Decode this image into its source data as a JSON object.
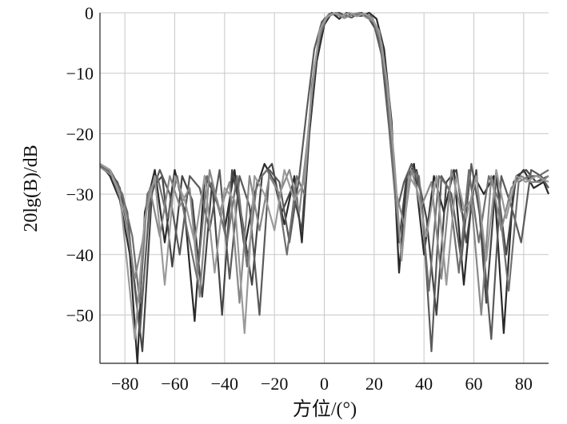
{
  "chart_data": {
    "type": "line",
    "title": "",
    "xlabel": "方位/(°)",
    "ylabel": "20lg(B)/dB",
    "xlim": [
      -90,
      90
    ],
    "ylim": [
      -58,
      0
    ],
    "xticks": [
      -80,
      -60,
      -40,
      -20,
      0,
      20,
      40,
      60,
      80
    ],
    "yticks": [
      0,
      -10,
      -20,
      -30,
      -40,
      -50
    ],
    "xtick_labels": [
      "−80",
      "−60",
      "−40",
      "−20",
      "0",
      "20",
      "40",
      "60",
      "80"
    ],
    "ytick_labels": [
      "0",
      "−10",
      "−20",
      "−30",
      "−40",
      "−50"
    ],
    "grid": true,
    "legend": "none",
    "colors": [
      "#2a2a2a",
      "#444444",
      "#5a5a5a",
      "#707070",
      "#888888",
      "#9a9a9a",
      "#3a3a3a",
      "#666666",
      "#7e7e7e",
      "#505050"
    ],
    "main_lobe": {
      "peak_db": 0,
      "left_3db_deg": -2,
      "right_3db_deg": 24,
      "null_left_deg": -8,
      "null_right_deg": 30
    },
    "sidelobe_level_db": -25,
    "series": [
      {
        "x": [
          -90,
          -86,
          -82,
          -78,
          -75,
          -72,
          -68,
          -64,
          -60,
          -56,
          -52,
          -48,
          -44,
          -40,
          -36,
          -32,
          -28,
          -24,
          -20,
          -16,
          -12,
          -9,
          -6,
          -3,
          0,
          3,
          6,
          9,
          12,
          15,
          18,
          21,
          24,
          27,
          30,
          33,
          36,
          40,
          44,
          48,
          52,
          56,
          60,
          64,
          68,
          72,
          76,
          80,
          84,
          88,
          90
        ],
        "y": [
          -25,
          -27,
          -31,
          -40,
          -58,
          -33,
          -26,
          -38,
          -26,
          -33,
          -51,
          -27,
          -30,
          -36,
          -26,
          -39,
          -30,
          -25,
          -28,
          -35,
          -27,
          -38,
          -20,
          -8,
          -2,
          0,
          -1,
          0,
          -0.5,
          -0.5,
          0,
          -1,
          -6,
          -18,
          -43,
          -28,
          -25,
          -40,
          -27,
          -33,
          -26,
          -45,
          -27,
          -30,
          -27,
          -53,
          -28,
          -26,
          -29,
          -28,
          -30
        ]
      },
      {
        "x": [
          -90,
          -86,
          -82,
          -78,
          -76,
          -73,
          -69,
          -65,
          -61,
          -57,
          -53,
          -49,
          -45,
          -41,
          -37,
          -33,
          -29,
          -25,
          -21,
          -17,
          -13,
          -9,
          -6,
          -3,
          0,
          3,
          6,
          9,
          12,
          15,
          18,
          21,
          24,
          27,
          30,
          33,
          37,
          41,
          45,
          49,
          53,
          57,
          61,
          65,
          69,
          73,
          77,
          81,
          85,
          90
        ],
        "y": [
          -25,
          -26,
          -29,
          -38,
          -45,
          -56,
          -29,
          -27,
          -42,
          -27,
          -31,
          -47,
          -28,
          -50,
          -26,
          -34,
          -45,
          -27,
          -25,
          -33,
          -29,
          -36,
          -19,
          -7,
          -1,
          -0.3,
          0,
          -0.6,
          -0.2,
          0,
          -1,
          -3,
          -9,
          -22,
          -38,
          -27,
          -26,
          -34,
          -50,
          -28,
          -26,
          -38,
          -26,
          -48,
          -27,
          -40,
          -27,
          -26,
          -28,
          -27
        ]
      },
      {
        "x": [
          -90,
          -87,
          -83,
          -79,
          -77,
          -74,
          -70,
          -66,
          -62,
          -58,
          -54,
          -50,
          -46,
          -42,
          -38,
          -34,
          -30,
          -26,
          -22,
          -18,
          -14,
          -10,
          -7,
          -4,
          -1,
          2,
          5,
          8,
          11,
          14,
          17,
          20,
          23,
          26,
          29,
          32,
          35,
          39,
          43,
          47,
          51,
          55,
          59,
          63,
          67,
          71,
          75,
          79,
          83,
          87,
          90
        ],
        "y": [
          -25,
          -26,
          -28,
          -33,
          -42,
          -53,
          -31,
          -26,
          -30,
          -40,
          -27,
          -29,
          -36,
          -26,
          -44,
          -27,
          -32,
          -50,
          -26,
          -28,
          -38,
          -27,
          -16,
          -6,
          -1.5,
          -0.2,
          0,
          -0.4,
          -0.8,
          0,
          -0.3,
          -2,
          -7,
          -19,
          -33,
          -28,
          -25,
          -30,
          -56,
          -27,
          -30,
          -41,
          -25,
          -35,
          -54,
          -27,
          -32,
          -38,
          -26,
          -27,
          -29
        ]
      },
      {
        "x": [
          -90,
          -86,
          -81,
          -77,
          -74,
          -71,
          -67,
          -63,
          -59,
          -55,
          -51,
          -47,
          -43,
          -39,
          -35,
          -31,
          -27,
          -23,
          -19,
          -15,
          -11,
          -8,
          -5,
          -2,
          1,
          4,
          7,
          10,
          13,
          16,
          19,
          22,
          25,
          28,
          31,
          34,
          38,
          42,
          46,
          50,
          54,
          58,
          62,
          66,
          70,
          74,
          78,
          82,
          86,
          90
        ],
        "y": [
          -25,
          -26.5,
          -30,
          -37,
          -48,
          -30,
          -27,
          -34,
          -27,
          -36,
          -44,
          -27,
          -31,
          -38,
          -27,
          -42,
          -28,
          -26,
          -29,
          -40,
          -27,
          -30,
          -12,
          -4,
          -0.8,
          -0.1,
          -0.7,
          0,
          -0.4,
          -0.2,
          -0.6,
          -4,
          -12,
          -28,
          -40,
          -26,
          -27,
          -46,
          -27,
          -29,
          -43,
          -26,
          -38,
          -27,
          -31,
          -46,
          -28,
          -27,
          -27,
          -26
        ]
      },
      {
        "x": [
          -90,
          -85,
          -80,
          -76,
          -73,
          -70,
          -66,
          -62,
          -58,
          -54,
          -50,
          -46,
          -42,
          -38,
          -34,
          -30,
          -26,
          -22,
          -18,
          -14,
          -10,
          -7,
          -4,
          -1,
          2,
          5,
          8,
          11,
          14,
          17,
          20,
          23,
          26,
          29,
          32,
          35,
          39,
          43,
          47,
          51,
          55,
          59,
          63,
          67,
          71,
          75,
          79,
          83,
          87,
          90
        ],
        "y": [
          -25.5,
          -27,
          -33,
          -44,
          -38,
          -29,
          -37,
          -27,
          -32,
          -29,
          -47,
          -26,
          -33,
          -28,
          -48,
          -27,
          -36,
          -27,
          -30,
          -26,
          -33,
          -22,
          -9,
          -2,
          -0.4,
          0,
          -0.9,
          -0.3,
          0,
          -0.8,
          -1.5,
          -5,
          -14,
          -30,
          -35,
          -26,
          -32,
          -28,
          -44,
          -26,
          -33,
          -31,
          -50,
          -27,
          -36,
          -29,
          -27,
          -28,
          -28,
          -27
        ]
      },
      {
        "x": [
          -90,
          -86,
          -82,
          -79,
          -76,
          -72,
          -68,
          -64,
          -60,
          -56,
          -52,
          -48,
          -44,
          -40,
          -36,
          -32,
          -28,
          -24,
          -20,
          -16,
          -12,
          -8,
          -5,
          -2,
          1,
          4,
          7,
          10,
          13,
          16,
          19,
          22,
          25,
          28,
          31,
          34,
          37,
          41,
          45,
          49,
          53,
          57,
          61,
          65,
          69,
          73,
          77,
          81,
          85,
          90
        ],
        "y": [
          -25,
          -26,
          -30,
          -42,
          -54,
          -34,
          -27,
          -45,
          -27,
          -31,
          -38,
          -27,
          -43,
          -29,
          -31,
          -53,
          -27,
          -30,
          -36,
          -26,
          -31,
          -28,
          -13,
          -3,
          -0.6,
          -0.1,
          -0.5,
          0,
          -0.6,
          -0.1,
          -0.9,
          -3,
          -11,
          -24,
          -41,
          -27,
          -29,
          -37,
          -27,
          -45,
          -27,
          -34,
          -27,
          -41,
          -26,
          -34,
          -27,
          -28,
          -27,
          -28
        ]
      }
    ]
  }
}
